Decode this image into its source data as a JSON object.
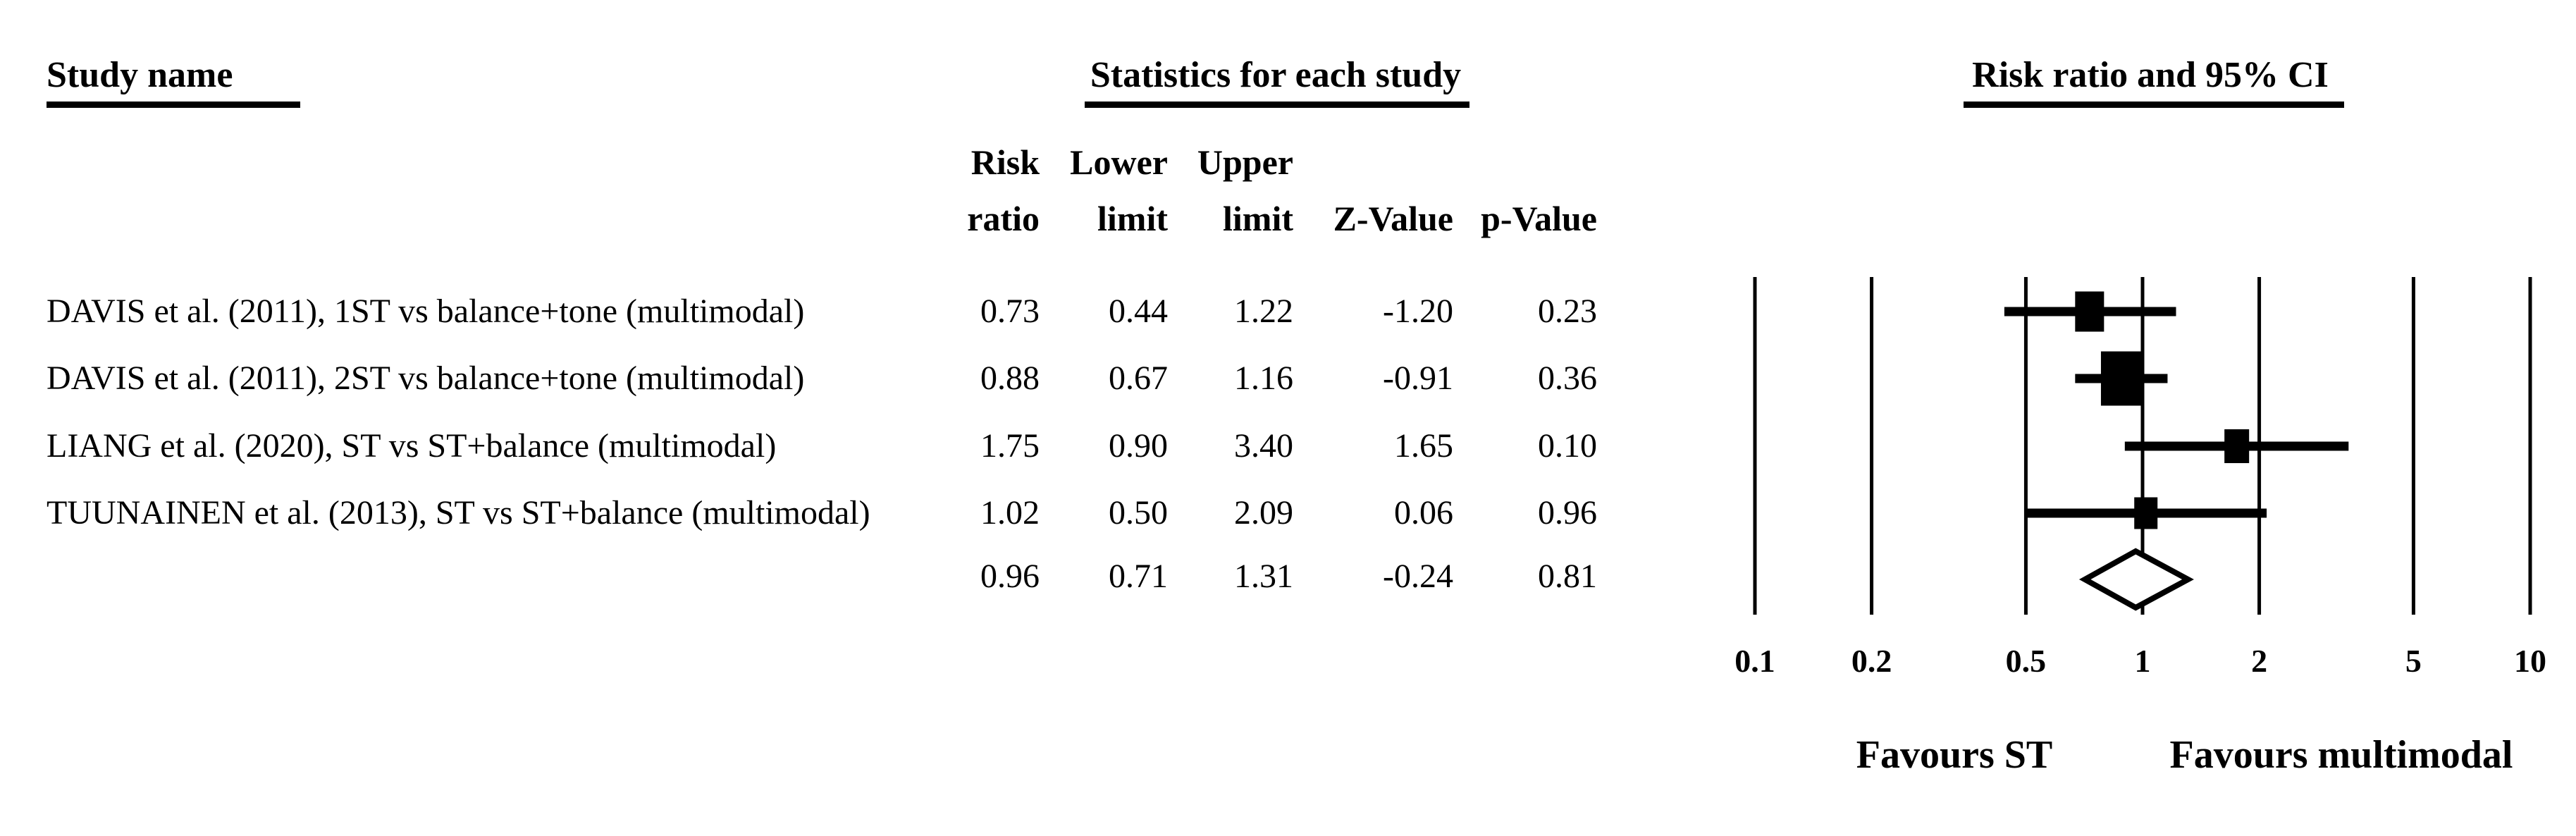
{
  "page": {
    "background": "#ffffff",
    "foreground": "#000000"
  },
  "headers": {
    "study_name": "Study name",
    "statistics": "Statistics for each study",
    "risk_ratio_ci": "Risk ratio and 95% CI"
  },
  "table": {
    "columns": [
      {
        "line1": "Risk",
        "line2": "ratio"
      },
      {
        "line1": "Lower",
        "line2": "limit"
      },
      {
        "line1": "Upper",
        "line2": "limit"
      },
      {
        "line1": "",
        "line2": "Z-Value"
      },
      {
        "line1": "",
        "line2": "p-Value"
      }
    ]
  },
  "chart_data": {
    "type": "scatter",
    "variant": "forest-plot",
    "title": "Risk ratio and 95% CI",
    "effect_measure": "Risk ratio",
    "x_scale": "log10",
    "xlim": [
      0.1,
      10
    ],
    "x_ticks": [
      0.1,
      0.2,
      0.5,
      1,
      2,
      5,
      10
    ],
    "x_tick_labels": [
      "0.1",
      "0.2",
      "0.5",
      "1",
      "2",
      "5",
      "10"
    ],
    "grid": "vertical-gridlines-at-ticks",
    "studies": [
      {
        "name": "DAVIS et al. (2011), 1ST vs balance+tone (multimodal)",
        "risk_ratio": 0.73,
        "lower_limit": 0.44,
        "upper_limit": 1.22,
        "z_value": -1.2,
        "p_value": 0.23,
        "marker_w": 41,
        "marker_h": 57
      },
      {
        "name": "DAVIS et al. (2011), 2ST vs balance+tone (multimodal)",
        "risk_ratio": 0.88,
        "lower_limit": 0.67,
        "upper_limit": 1.16,
        "z_value": -0.91,
        "p_value": 0.36,
        "marker_w": 57,
        "marker_h": 77
      },
      {
        "name": "LIANG et al. (2020), ST vs ST+balance (multimodal)",
        "risk_ratio": 1.75,
        "lower_limit": 0.9,
        "upper_limit": 3.4,
        "z_value": 1.65,
        "p_value": 0.1,
        "marker_w": 35,
        "marker_h": 48
      },
      {
        "name": "TUUNAINEN et al. (2013), ST vs ST+balance (multimodal)",
        "risk_ratio": 1.02,
        "lower_limit": 0.5,
        "upper_limit": 2.09,
        "z_value": 0.06,
        "p_value": 0.96,
        "marker_w": 33,
        "marker_h": 45
      }
    ],
    "summary": {
      "risk_ratio": 0.96,
      "lower_limit": 0.71,
      "upper_limit": 1.31,
      "z_value": -0.24,
      "p_value": 0.81,
      "marker": "open-diamond"
    },
    "favours_left": "Favours ST",
    "favours_right": "Favours multimodal"
  }
}
